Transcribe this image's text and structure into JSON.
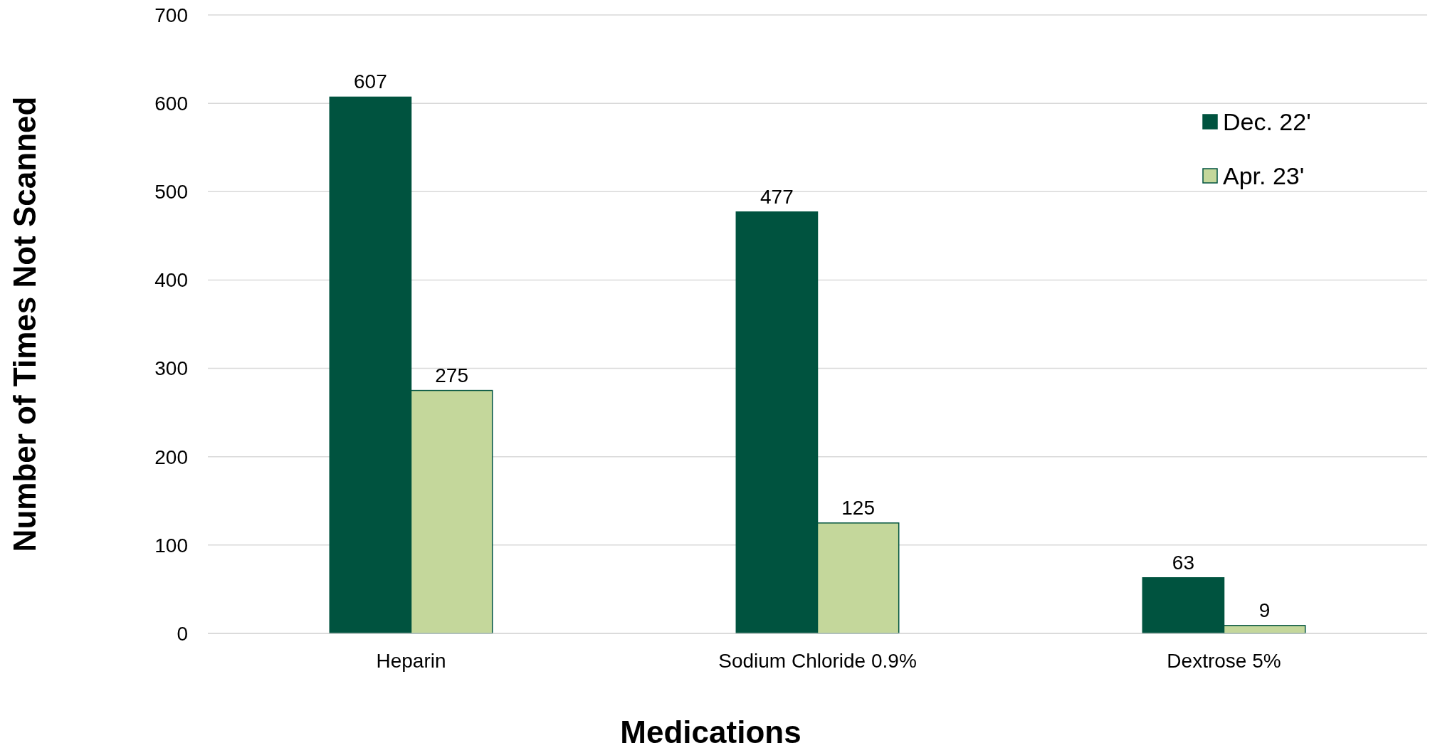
{
  "chart_data": {
    "type": "bar",
    "xlabel": "Medications",
    "ylabel": "Number of Times Not Scanned",
    "categories": [
      "Heparin",
      "Sodium Chloride 0.9%",
      "Dextrose 5%"
    ],
    "series": [
      {
        "name": "Dec. 22'",
        "color": "#00533f",
        "values": [
          607,
          477,
          63
        ]
      },
      {
        "name": "Apr. 23'",
        "color": "#c4d79b",
        "values": [
          275,
          125,
          9
        ]
      }
    ],
    "ylim": [
      0,
      700
    ],
    "yticks": [
      0,
      100,
      200,
      300,
      400,
      500,
      600,
      700
    ],
    "grid": "y",
    "legend": "top right",
    "data_labels": true
  }
}
